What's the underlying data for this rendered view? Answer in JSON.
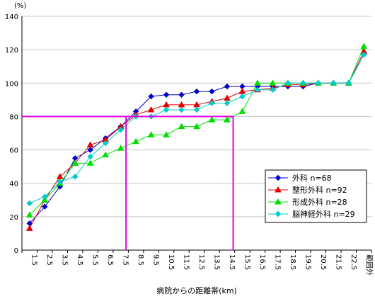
{
  "chart_data": {
    "type": "line",
    "y_unit_label": "(%)",
    "xlabel": "病院からの距離帯(km)",
    "ylim": [
      0,
      140
    ],
    "y_ticks": [
      0,
      20,
      40,
      60,
      80,
      100,
      120,
      140
    ],
    "grid": "horizontal",
    "legend_position": "lower-right",
    "categories": [
      "1.5",
      "2.5",
      "3.5",
      "4.5",
      "5.5",
      "6.5",
      "7.5",
      "8.5",
      "9.5",
      "10.5",
      "11.5",
      "12.5",
      "13.5",
      "14.5",
      "15.5",
      "16.5",
      "17.5",
      "18.5",
      "19.5",
      "20.5",
      "21.5",
      "22.5",
      "範囲外"
    ],
    "series": [
      {
        "name": "外科",
        "n_label": "n=68",
        "color": "#0000cc",
        "marker": "diamond",
        "values": [
          16,
          26,
          38,
          55,
          60,
          67,
          74,
          83,
          92,
          93,
          93,
          95,
          95,
          98,
          98,
          98,
          98,
          98,
          98,
          100,
          100,
          100,
          117
        ]
      },
      {
        "name": "整形外科",
        "n_label": "n=92",
        "color": "#e00000",
        "marker": "triangle",
        "values": [
          13,
          30,
          44,
          52,
          63,
          66,
          74,
          81,
          84,
          87,
          87,
          87,
          89,
          91,
          95,
          96,
          97,
          99,
          99,
          100,
          100,
          100,
          119
        ]
      },
      {
        "name": "形成外科",
        "n_label": "n=28",
        "color": "#00dd00",
        "marker": "triangle",
        "values": [
          21,
          30,
          40,
          52,
          52,
          57,
          61,
          65,
          69,
          69,
          74,
          74,
          78,
          78,
          83,
          100,
          100,
          100,
          100,
          100,
          100,
          100,
          122
        ]
      },
      {
        "name": "脳神経外科",
        "n_label": "n=29",
        "color": "#00cccc",
        "marker": "diamond",
        "values": [
          28,
          32,
          41,
          44,
          56,
          64,
          72,
          80,
          80,
          84,
          84,
          84,
          88,
          88,
          92,
          96,
          96,
          100,
          100,
          100,
          100,
          100,
          117
        ]
      }
    ],
    "reference_lines": {
      "color": "#e000e0",
      "y_value": 80,
      "x_categories": [
        "8.5",
        "15.5"
      ]
    }
  }
}
